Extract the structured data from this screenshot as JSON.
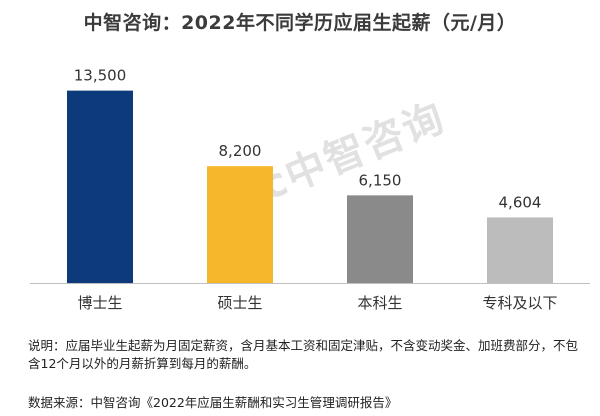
{
  "title": "中智咨询：2022年不同学历应届生起薪（元/月）",
  "watermark": "ciic中智咨询",
  "chart_data": {
    "type": "bar",
    "categories": [
      "博士生",
      "硕士生",
      "本科生",
      "专科及以下"
    ],
    "values": [
      13500,
      8200,
      6150,
      4604
    ],
    "value_labels": [
      "13,500",
      "8,200",
      "6,150",
      "4,604"
    ],
    "colors": [
      "#0d3a7a",
      "#f7b72d",
      "#8a8a8a",
      "#bcbcbc"
    ],
    "ylim": [
      0,
      16000
    ],
    "xlabel": "",
    "ylabel": "",
    "grid": false
  },
  "note": "说明：应届毕业生起薪为月固定薪资，含月基本工资和固定津贴，不含变动奖金、加班费部分，不包含12个月以外的月薪折算到每月的薪酬。",
  "source": "数据来源：中智咨询《2022年应届生薪酬和实习生管理调研报告》"
}
